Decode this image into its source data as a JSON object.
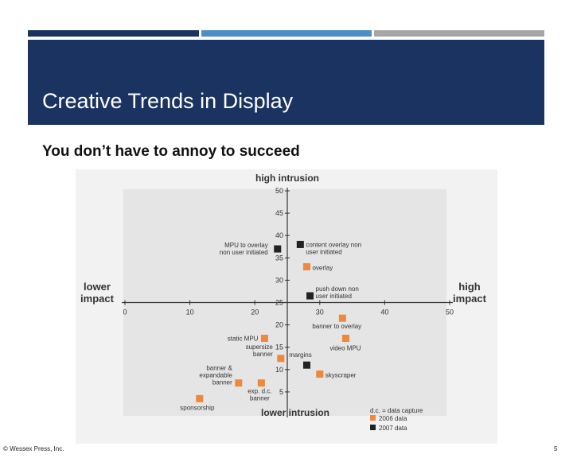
{
  "slide": {
    "title": "Creative Trends in Display",
    "subtitle": "You don’t have to annoy to succeed",
    "footer_left": "© Wessex Press, Inc.",
    "page_number": "5"
  },
  "colors": {
    "header_band": "#1b3361",
    "accent_blue": "#4a8ec4",
    "accent_gray": "#a6a6a6",
    "series_2006": "#f0873a",
    "series_2007": "#222222"
  },
  "chart_data": {
    "type": "scatter",
    "title": "",
    "xlim": [
      0,
      50
    ],
    "ylim": [
      0,
      50
    ],
    "x_ticks": [
      0,
      10,
      20,
      30,
      40,
      50
    ],
    "y_ticks": [
      5,
      10,
      15,
      20,
      25,
      30,
      35,
      40,
      45,
      50
    ],
    "axis_labels": {
      "top": "high intrusion",
      "bottom": "lower intrusion",
      "left": [
        "lower",
        "impact"
      ],
      "right": [
        "high",
        "impact"
      ]
    },
    "legend_note": "d.c. = data capture",
    "series": [
      {
        "name": "2006 data",
        "color": "#f0873a",
        "points": [
          {
            "x": 28,
            "y": 33,
            "label": [
              "overlay"
            ]
          },
          {
            "x": 33.5,
            "y": 21.5,
            "label": [
              "banner to overlay"
            ]
          },
          {
            "x": 34,
            "y": 17,
            "label": [
              "video MPU"
            ]
          },
          {
            "x": 21.5,
            "y": 17,
            "label": [
              "static MPU"
            ]
          },
          {
            "x": 24,
            "y": 12.5,
            "label": [
              "supersize",
              "banner"
            ]
          },
          {
            "x": 30,
            "y": 9,
            "label": [
              "skyscraper"
            ]
          },
          {
            "x": 17.5,
            "y": 7,
            "label": [
              "banner &",
              "expandable",
              "banner"
            ]
          },
          {
            "x": 21,
            "y": 7,
            "label": [
              "exp. d.c.",
              "banner"
            ]
          },
          {
            "x": 11.5,
            "y": 3.5,
            "label": [
              "sponsorship"
            ]
          }
        ]
      },
      {
        "name": "2007 data",
        "color": "#222222",
        "points": [
          {
            "x": 23.5,
            "y": 37,
            "label": [
              "MPU to overlay",
              "non user initiated"
            ]
          },
          {
            "x": 27,
            "y": 38,
            "label": [
              "content overlay non",
              "user initiated"
            ]
          },
          {
            "x": 28.5,
            "y": 26.5,
            "label": [
              "push down non",
              "user initiated"
            ]
          },
          {
            "x": 28,
            "y": 11,
            "label": [
              "margins"
            ]
          }
        ]
      }
    ]
  }
}
